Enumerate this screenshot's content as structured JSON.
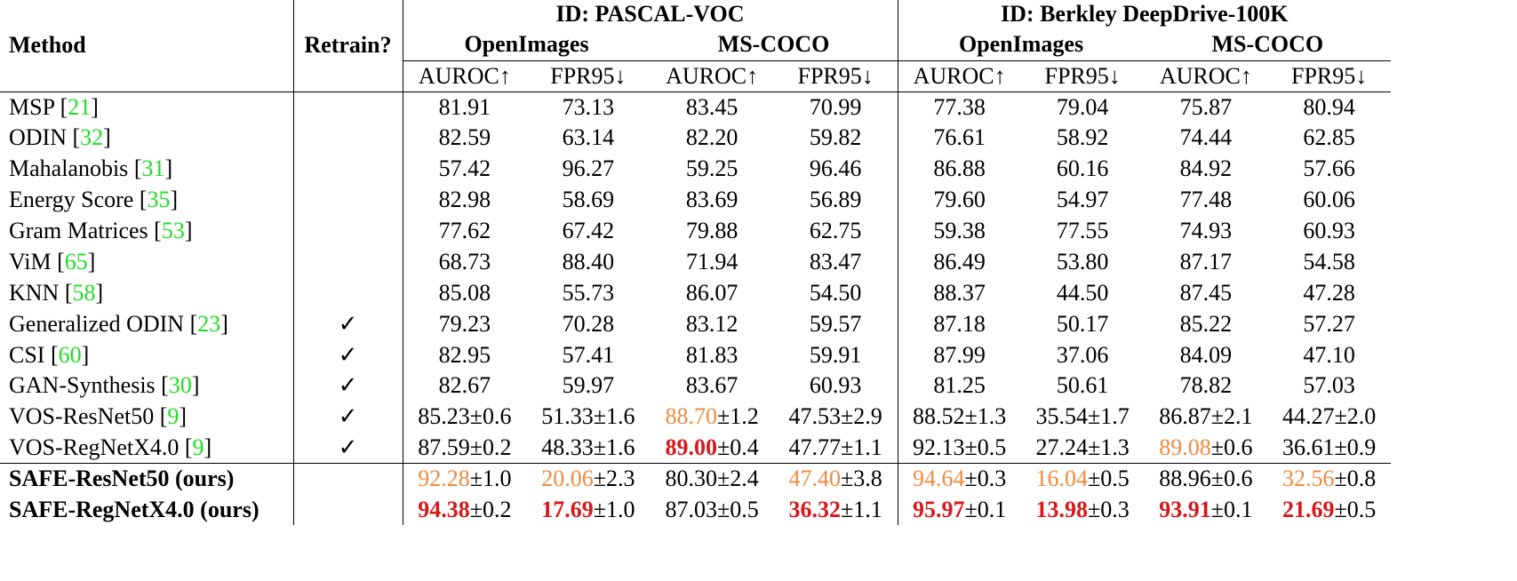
{
  "table": {
    "header": {
      "method": "Method",
      "retrain": "Retrain?",
      "groups": [
        {
          "title": "ID: PASCAL-VOC",
          "subgroups": [
            "OpenImages",
            "MS-COCO"
          ]
        },
        {
          "title": "ID: Berkley DeepDrive-100K",
          "subgroups": [
            "OpenImages",
            "MS-COCO"
          ]
        }
      ],
      "metrics": [
        "AUROC↑",
        "FPR95↓"
      ]
    },
    "citation_brackets": [
      "[",
      "]"
    ],
    "styles": {
      "best": {
        "color": "#d7191c",
        "bold": true
      },
      "second": {
        "color": "#f08a3c",
        "bold": false
      },
      "citation_color": "#22dd22"
    },
    "sections": [
      {
        "rows": [
          {
            "method": "MSP",
            "ref": "21",
            "retrain": null,
            "cells": [
              "81.91",
              "73.13",
              "83.45",
              "70.99",
              "77.38",
              "79.04",
              "75.87",
              "80.94"
            ]
          },
          {
            "method": "ODIN",
            "ref": "32",
            "retrain": null,
            "cells": [
              "82.59",
              "63.14",
              "82.20",
              "59.82",
              "76.61",
              "58.92",
              "74.44",
              "62.85"
            ]
          },
          {
            "method": "Mahalanobis",
            "ref": "31",
            "retrain": null,
            "cells": [
              "57.42",
              "96.27",
              "59.25",
              "96.46",
              "86.88",
              "60.16",
              "84.92",
              "57.66"
            ]
          },
          {
            "method": "Energy Score",
            "ref": "35",
            "retrain": null,
            "cells": [
              "82.98",
              "58.69",
              "83.69",
              "56.89",
              "79.60",
              "54.97",
              "77.48",
              "60.06"
            ]
          },
          {
            "method": "Gram Matrices",
            "ref": "53",
            "retrain": null,
            "cells": [
              "77.62",
              "67.42",
              "79.88",
              "62.75",
              "59.38",
              "77.55",
              "74.93",
              "60.93"
            ]
          },
          {
            "method": "ViM",
            "ref": "65",
            "retrain": null,
            "cells": [
              "68.73",
              "88.40",
              "71.94",
              "83.47",
              "86.49",
              "53.80",
              "87.17",
              "54.58"
            ]
          },
          {
            "method": "KNN",
            "ref": "58",
            "retrain": null,
            "cells": [
              "85.08",
              "55.73",
              "86.07",
              "54.50",
              "88.37",
              "44.50",
              "87.45",
              "47.28"
            ]
          },
          {
            "method": "Generalized ODIN",
            "ref": "23",
            "retrain": "✓",
            "cells": [
              "79.23",
              "70.28",
              "83.12",
              "59.57",
              "87.18",
              "50.17",
              "85.22",
              "57.27"
            ]
          },
          {
            "method": "CSI",
            "ref": "60",
            "retrain": "✓",
            "cells": [
              "82.95",
              "57.41",
              "81.83",
              "59.91",
              "87.99",
              "37.06",
              "84.09",
              "47.10"
            ]
          },
          {
            "method": "GAN-Synthesis",
            "ref": "30",
            "retrain": "✓",
            "cells": [
              "82.67",
              "59.97",
              "83.67",
              "60.93",
              "81.25",
              "50.61",
              "78.82",
              "57.03"
            ]
          },
          {
            "method": "VOS-ResNet50",
            "ref": "9",
            "retrain": "✓",
            "cells": [
              {
                "value": "85.23",
                "error": "±0.6"
              },
              {
                "value": "51.33",
                "error": "±1.6"
              },
              {
                "value": "88.70",
                "error": "±1.2",
                "rank": "second"
              },
              {
                "value": "47.53",
                "error": "±2.9"
              },
              {
                "value": "88.52",
                "error": "±1.3"
              },
              {
                "value": "35.54",
                "error": "±1.7"
              },
              {
                "value": "86.87",
                "error": "±2.1"
              },
              {
                "value": "44.27",
                "error": "±2.0"
              }
            ]
          },
          {
            "method": "VOS-RegNetX4.0",
            "ref": "9",
            "retrain": "✓",
            "cells": [
              {
                "value": "87.59",
                "error": "±0.2"
              },
              {
                "value": "48.33",
                "error": "±1.6"
              },
              {
                "value": "89.00",
                "error": "±0.4",
                "rank": "best"
              },
              {
                "value": "47.77",
                "error": "±1.1"
              },
              {
                "value": "92.13",
                "error": "±0.5"
              },
              {
                "value": "27.24",
                "error": "±1.3"
              },
              {
                "value": "89.08",
                "error": "±0.6",
                "rank": "second"
              },
              {
                "value": "36.61",
                "error": "±0.9"
              }
            ]
          }
        ]
      },
      {
        "rows": [
          {
            "method": "SAFE-ResNet50 (ours)",
            "bold": true,
            "retrain": null,
            "cells": [
              {
                "value": "92.28",
                "error": "±1.0",
                "rank": "second"
              },
              {
                "value": "20.06",
                "error": "±2.3",
                "rank": "second"
              },
              {
                "value": "80.30",
                "error": "±2.4"
              },
              {
                "value": "47.40",
                "error": "±3.8",
                "rank": "second"
              },
              {
                "value": "94.64",
                "error": "±0.3",
                "rank": "second"
              },
              {
                "value": "16.04",
                "error": "±0.5",
                "rank": "second"
              },
              {
                "value": "88.96",
                "error": "±0.6"
              },
              {
                "value": "32.56",
                "error": "±0.8",
                "rank": "second"
              }
            ]
          },
          {
            "method": "SAFE-RegNetX4.0 (ours)",
            "bold": true,
            "retrain": null,
            "cells": [
              {
                "value": "94.38",
                "error": "±0.2",
                "rank": "best"
              },
              {
                "value": "17.69",
                "error": "±1.0",
                "rank": "best"
              },
              {
                "value": "87.03",
                "error": "±0.5"
              },
              {
                "value": "36.32",
                "error": "±1.1",
                "rank": "best"
              },
              {
                "value": "95.97",
                "error": "±0.1",
                "rank": "best"
              },
              {
                "value": "13.98",
                "error": "±0.3",
                "rank": "best"
              },
              {
                "value": "93.91",
                "error": "±0.1",
                "rank": "best"
              },
              {
                "value": "21.69",
                "error": "±0.5",
                "rank": "best"
              }
            ]
          }
        ]
      }
    ]
  }
}
